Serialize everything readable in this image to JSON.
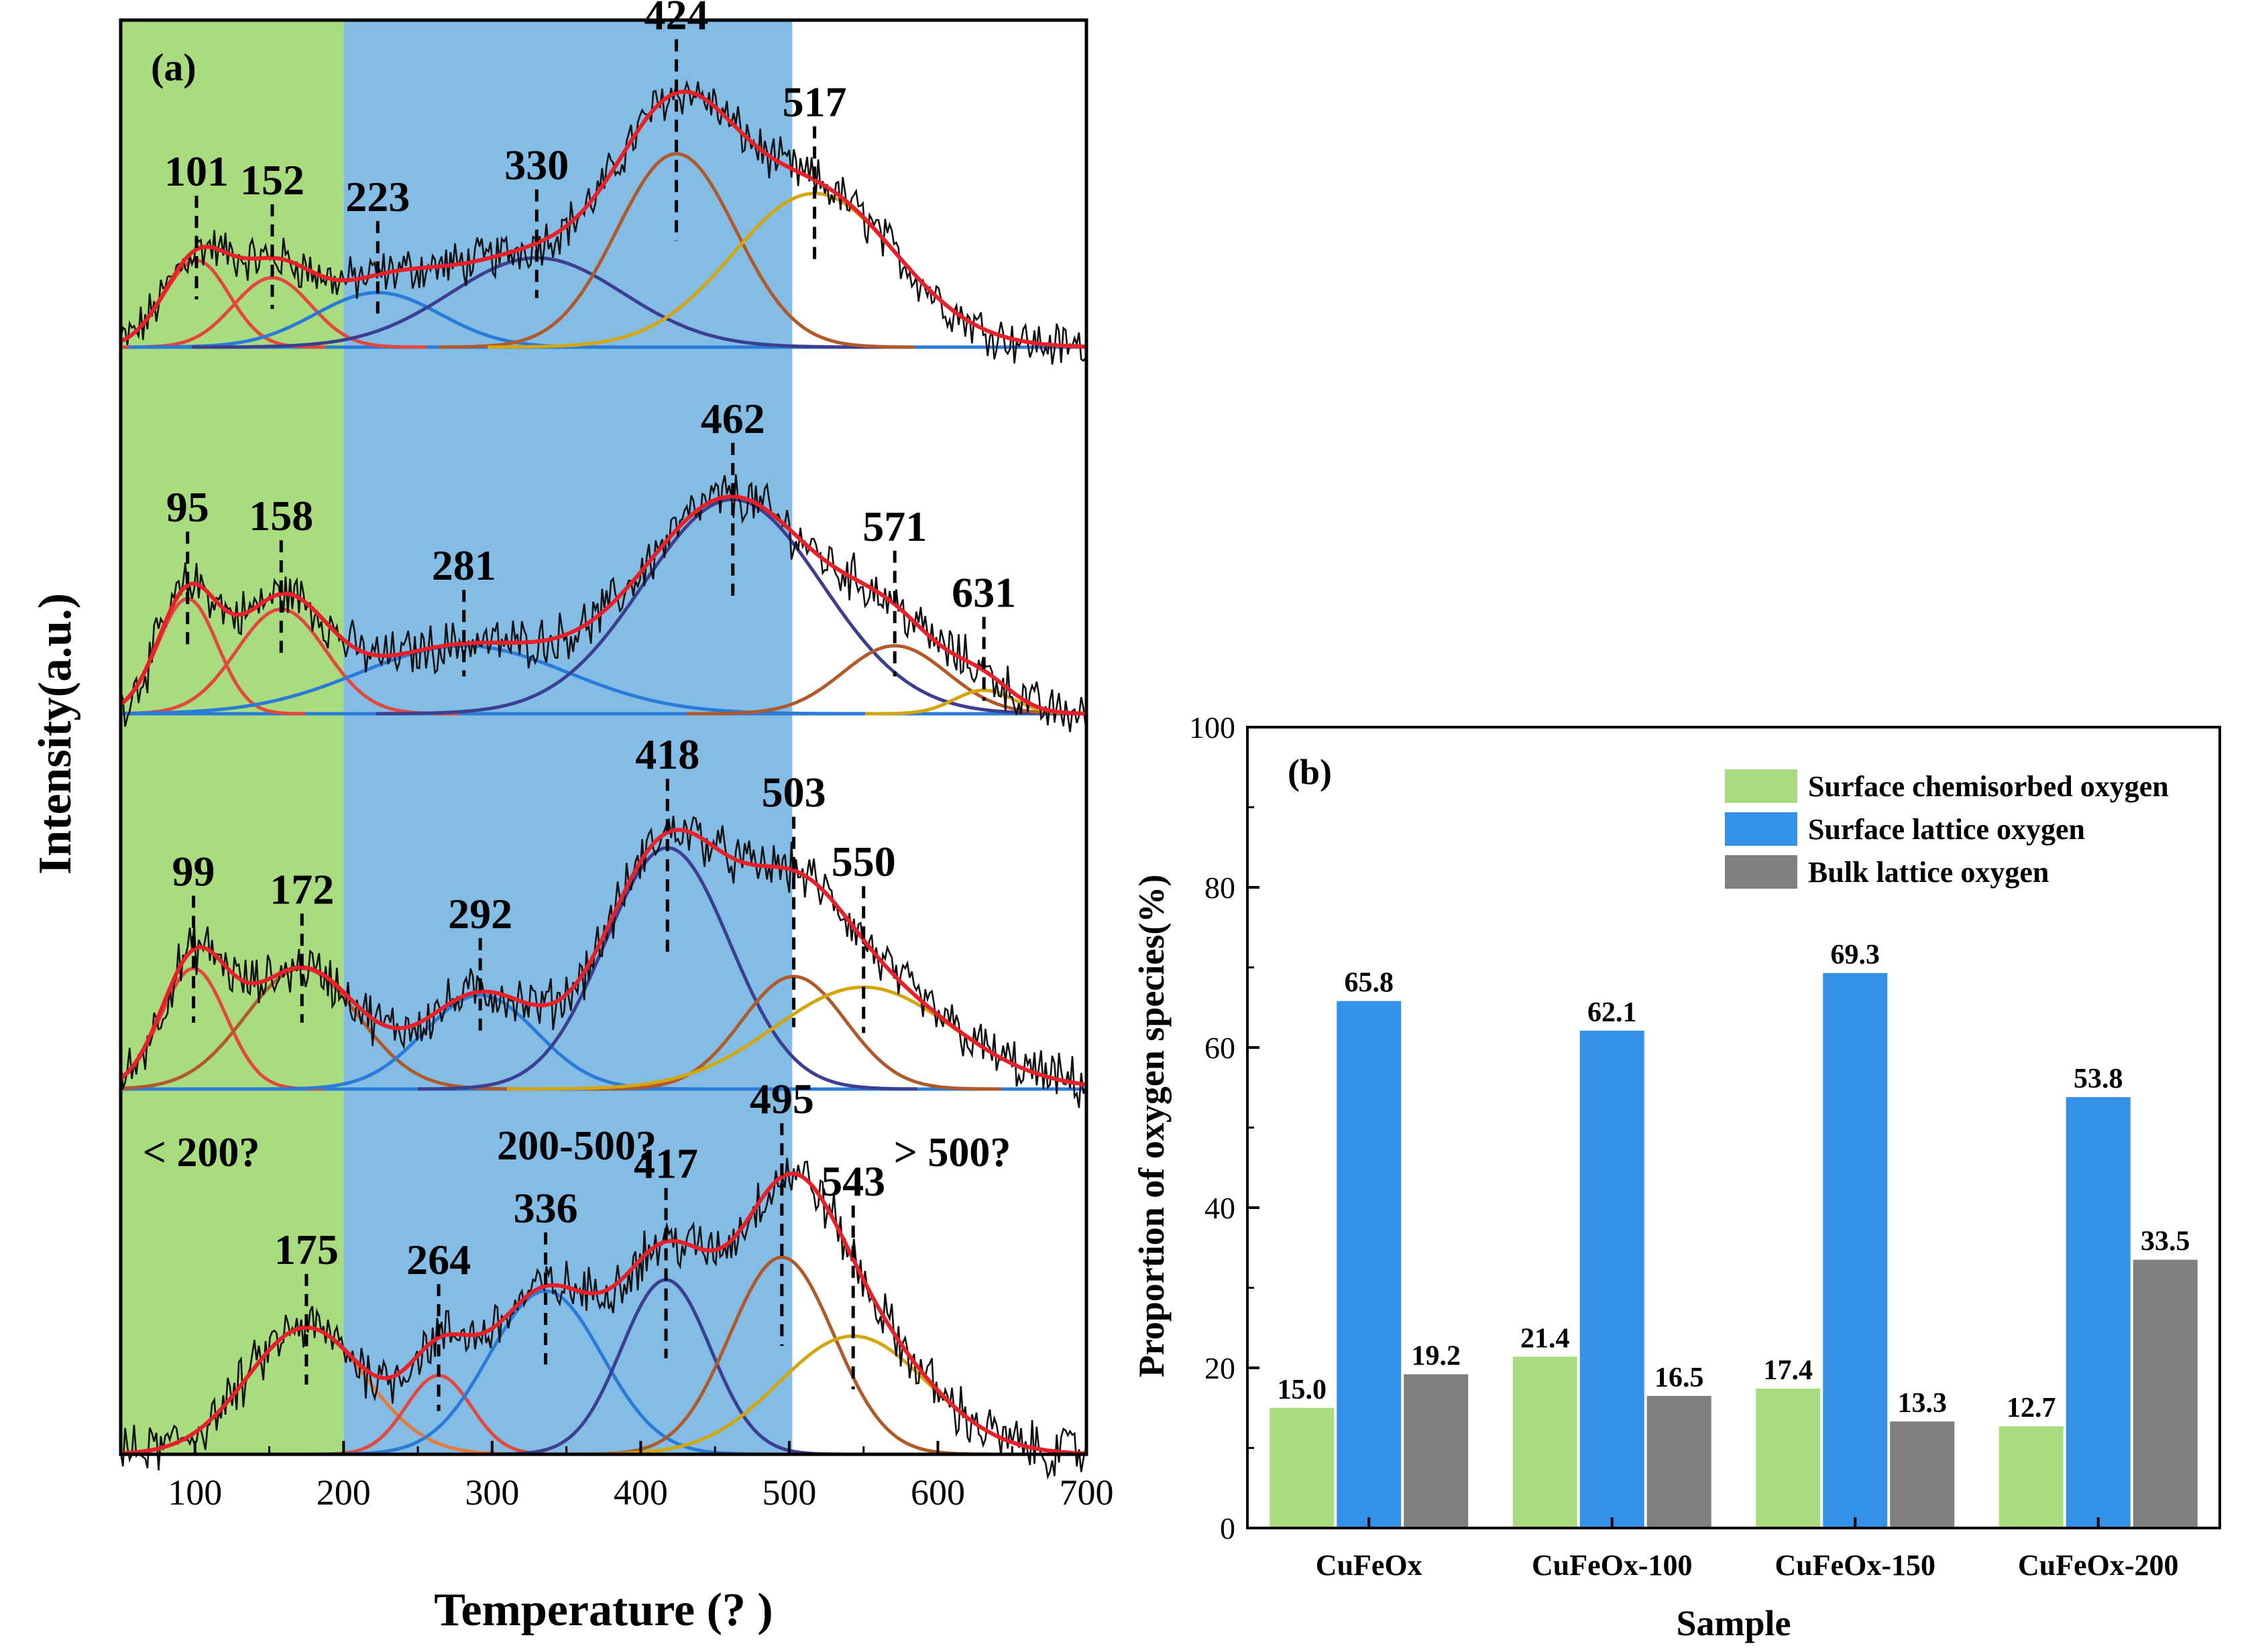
{
  "chart_data": [
    {
      "type": "line",
      "panel_label": "(a)",
      "title": "",
      "xlabel": "Temperature (?  )",
      "ylabel": "Intensity(a.u.)",
      "xlim": [
        50,
        700
      ],
      "xticks": [
        "100",
        "200",
        "300",
        "400",
        "500",
        "600",
        "700"
      ],
      "regions": [
        {
          "name": "low",
          "range": [
            50,
            200
          ],
          "color": "#a9dc7e",
          "label": "< 200?"
        },
        {
          "name": "mid",
          "range": [
            200,
            502
          ],
          "color": "#83bde6",
          "label": "200-500?"
        },
        {
          "name": "high",
          "range": [
            502,
            700
          ],
          "color": "#ffffff",
          "label": "> 500?"
        }
      ],
      "series": [
        {
          "name": "trace-1",
          "peaks": [
            {
              "center": 101,
              "height": 0.35,
              "width": 22,
              "color": "#e4473d",
              "label": "101"
            },
            {
              "center": 152,
              "height": 0.28,
              "width": 26,
              "color": "#e4473d",
              "label": "152"
            },
            {
              "center": 223,
              "height": 0.22,
              "width": 42,
              "color": "#2a7ad8",
              "label": "223"
            },
            {
              "center": 330,
              "height": 0.36,
              "width": 58,
              "color": "#3c3f8f",
              "label": "330"
            },
            {
              "center": 424,
              "height": 0.78,
              "width": 40,
              "color": "#b05a2a",
              "label": "424"
            },
            {
              "center": 517,
              "height": 0.62,
              "width": 55,
              "color": "#d4a60e",
              "label": "517"
            }
          ]
        },
        {
          "name": "trace-2",
          "peaks": [
            {
              "center": 95,
              "height": 0.44,
              "width": 20,
              "color": "#e4473d",
              "label": "95"
            },
            {
              "center": 158,
              "height": 0.4,
              "width": 30,
              "color": "#e4473d",
              "label": "158"
            },
            {
              "center": 281,
              "height": 0.26,
              "width": 70,
              "color": "#2a7ad8",
              "label": "281"
            },
            {
              "center": 462,
              "height": 0.82,
              "width": 60,
              "color": "#3c3f8f",
              "label": "462"
            },
            {
              "center": 571,
              "height": 0.26,
              "width": 35,
              "color": "#b05a2a",
              "label": "571"
            },
            {
              "center": 631,
              "height": 0.09,
              "width": 20,
              "color": "#d4a60e",
              "label": "631"
            }
          ]
        },
        {
          "name": "trace-3",
          "peaks": [
            {
              "center": 99,
              "height": 0.45,
              "width": 22,
              "color": "#e4473d",
              "label": "99"
            },
            {
              "center": 172,
              "height": 0.45,
              "width": 38,
              "color": "#b05a2a",
              "label": "172"
            },
            {
              "center": 292,
              "height": 0.35,
              "width": 38,
              "color": "#2a7ad8",
              "label": "292"
            },
            {
              "center": 418,
              "height": 0.9,
              "width": 42,
              "color": "#3c3f8f",
              "label": "418"
            },
            {
              "center": 503,
              "height": 0.42,
              "width": 35,
              "color": "#b05a2a",
              "label": "503"
            },
            {
              "center": 550,
              "height": 0.38,
              "width": 60,
              "color": "#d4a60e",
              "label": "550"
            }
          ]
        },
        {
          "name": "trace-4",
          "peaks": [
            {
              "center": 175,
              "height": 0.45,
              "width": 40,
              "color": "#e47a3d",
              "label": "175"
            },
            {
              "center": 264,
              "height": 0.28,
              "width": 22,
              "color": "#e4473d",
              "label": "264"
            },
            {
              "center": 336,
              "height": 0.58,
              "width": 38,
              "color": "#2a7ad8",
              "label": "336"
            },
            {
              "center": 417,
              "height": 0.62,
              "width": 30,
              "color": "#3c3f8f",
              "label": "417"
            },
            {
              "center": 495,
              "height": 0.7,
              "width": 35,
              "color": "#b05a2a",
              "label": "495"
            },
            {
              "center": 543,
              "height": 0.42,
              "width": 50,
              "color": "#d4a60e",
              "label": "543"
            }
          ]
        }
      ]
    },
    {
      "type": "bar",
      "panel_label": "(b)",
      "title": "",
      "xlabel": "Sample",
      "ylabel": "Proportion of oxygen species(%)",
      "ylim": [
        0,
        100
      ],
      "yticks": [
        "0",
        "20",
        "40",
        "60",
        "80",
        "100"
      ],
      "categories": [
        "CuFeOx",
        "CuFeOx-100",
        "CuFeOx-150",
        "CuFeOx-200"
      ],
      "series": [
        {
          "name": "Surface chemisorbed oxygen",
          "color": "#a9dc7e",
          "values": [
            15.0,
            21.4,
            17.4,
            12.7
          ],
          "labels": [
            "15.0",
            "21.4",
            "17.4",
            "12.7"
          ]
        },
        {
          "name": "Surface lattice oxygen",
          "color": "#3590e8",
          "values": [
            65.8,
            62.1,
            69.3,
            53.8
          ],
          "labels": [
            "65.8",
            "62.1",
            "69.3",
            "53.8"
          ]
        },
        {
          "name": "Bulk lattice oxygen",
          "color": "#7f7f7f",
          "values": [
            19.2,
            16.5,
            13.3,
            33.5
          ],
          "labels": [
            "19.2",
            "16.5",
            "13.3",
            "33.5"
          ]
        }
      ],
      "legend": "top-right"
    }
  ]
}
